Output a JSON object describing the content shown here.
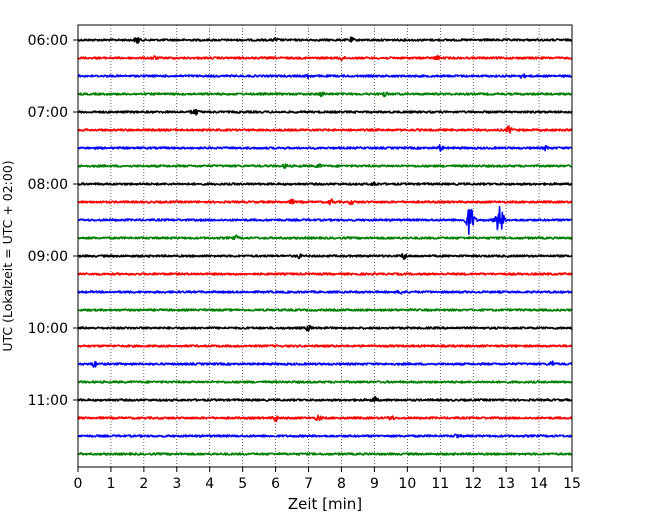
{
  "chart_data": {
    "type": "line",
    "title": "",
    "xlabel": "Zeit  [min]",
    "ylabel": "UTC (Lokalzeit = UTC + 02:00)",
    "xlim": [
      0,
      15
    ],
    "x_ticks": [
      0,
      1,
      2,
      3,
      4,
      5,
      6,
      7,
      8,
      9,
      10,
      11,
      12,
      13,
      14,
      15
    ],
    "grid": "vertical dotted",
    "legend": "none",
    "row_interval_minutes": 15,
    "y_ticks": [
      "06:00",
      "07:00",
      "08:00",
      "09:00",
      "10:00",
      "11:00"
    ],
    "colors": [
      "#000000",
      "#ff0000",
      "#0000ff",
      "#008000"
    ],
    "series": [
      {
        "start": "06:00",
        "color": "#000000",
        "events": [
          [
            1.8,
            0.4
          ],
          [
            6.0,
            0.2
          ],
          [
            8.3,
            0.2
          ]
        ]
      },
      {
        "start": "06:15",
        "color": "#ff0000",
        "events": [
          [
            2.3,
            0.2
          ],
          [
            8.0,
            0.2
          ],
          [
            10.9,
            0.2
          ]
        ]
      },
      {
        "start": "06:30",
        "color": "#0000ff",
        "events": [
          [
            7.0,
            0.2
          ],
          [
            13.5,
            0.2
          ]
        ]
      },
      {
        "start": "06:45",
        "color": "#008000",
        "events": [
          [
            7.4,
            0.2
          ],
          [
            9.3,
            0.25
          ]
        ]
      },
      {
        "start": "07:00",
        "color": "#000000",
        "events": [
          [
            3.5,
            0.2
          ],
          [
            3.6,
            0.2
          ]
        ]
      },
      {
        "start": "07:15",
        "color": "#ff0000",
        "events": [
          [
            13.1,
            0.45
          ]
        ]
      },
      {
        "start": "07:30",
        "color": "#0000ff",
        "events": [
          [
            11.0,
            0.3
          ],
          [
            14.2,
            0.2
          ]
        ]
      },
      {
        "start": "07:45",
        "color": "#008000",
        "events": [
          [
            6.3,
            0.2
          ],
          [
            7.3,
            0.2
          ]
        ]
      },
      {
        "start": "08:00",
        "color": "#000000",
        "events": [
          [
            9.0,
            0.2
          ]
        ]
      },
      {
        "start": "08:15",
        "color": "#ff0000",
        "events": [
          [
            6.5,
            0.2
          ],
          [
            7.7,
            0.3
          ],
          [
            8.3,
            0.2
          ]
        ]
      },
      {
        "start": "08:30",
        "color": "#0000ff",
        "events": [
          [
            11.9,
            1.6
          ],
          [
            12.8,
            1.5
          ]
        ]
      },
      {
        "start": "08:45",
        "color": "#008000",
        "events": [
          [
            4.8,
            0.2
          ]
        ]
      },
      {
        "start": "09:00",
        "color": "#000000",
        "events": [
          [
            6.7,
            0.2
          ],
          [
            9.9,
            0.35
          ]
        ]
      },
      {
        "start": "09:15",
        "color": "#ff0000",
        "events": []
      },
      {
        "start": "09:30",
        "color": "#0000ff",
        "events": [
          [
            9.8,
            0.2
          ]
        ]
      },
      {
        "start": "09:45",
        "color": "#008000",
        "events": []
      },
      {
        "start": "10:00",
        "color": "#000000",
        "events": [
          [
            7.0,
            0.3
          ]
        ]
      },
      {
        "start": "10:15",
        "color": "#ff0000",
        "events": []
      },
      {
        "start": "10:30",
        "color": "#0000ff",
        "events": [
          [
            0.5,
            0.3
          ],
          [
            14.4,
            0.3
          ]
        ]
      },
      {
        "start": "10:45",
        "color": "#008000",
        "events": []
      },
      {
        "start": "11:00",
        "color": "#000000",
        "events": [
          [
            9.0,
            0.35
          ]
        ]
      },
      {
        "start": "11:15",
        "color": "#ff0000",
        "events": [
          [
            6.0,
            0.35
          ],
          [
            7.3,
            0.3
          ],
          [
            9.5,
            0.3
          ]
        ]
      },
      {
        "start": "11:30",
        "color": "#0000ff",
        "events": [
          [
            11.5,
            0.2
          ]
        ]
      },
      {
        "start": "11:45",
        "color": "#008000",
        "events": []
      }
    ]
  }
}
